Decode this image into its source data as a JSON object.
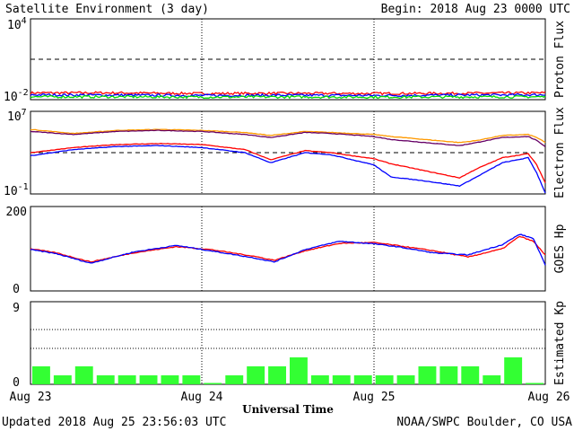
{
  "header": {
    "title": "Satellite Environment (3 day)",
    "begin": "Begin:  2018 Aug 23 0000 UTC"
  },
  "footer": {
    "updated": "Updated 2018 Aug 25 23:56:03 UTC",
    "credit": "NOAA/SWPC Boulder, CO USA"
  },
  "xaxis": {
    "label": "Universal Time",
    "ticks": [
      "Aug 23",
      "Aug 24",
      "Aug 25",
      "Aug 26"
    ]
  },
  "colors": {
    "red": "#ff0000",
    "blue": "#0000ff",
    "green": "#00e000",
    "orange": "#ff9900",
    "purple": "#660066",
    "kp_green": "#33ff33"
  },
  "chart_data": [
    {
      "type": "line",
      "name": "proton-flux",
      "ylabel": "Proton Flux",
      "ytick_labels": {
        "top": "10",
        "top_exp": "4",
        "bottom": "10",
        "bottom_exp": "-2"
      },
      "ylim_log10": [
        -2,
        4
      ],
      "threshold_log10": 1,
      "x_days": [
        0,
        0.5,
        1,
        1.5,
        2,
        2.5,
        3
      ],
      "series": [
        {
          "color": "red",
          "values_log10": [
            -1.55,
            -1.55,
            -1.6,
            -1.58,
            -1.6,
            -1.58,
            -1.55
          ]
        },
        {
          "color": "blue",
          "values_log10": [
            -1.7,
            -1.72,
            -1.75,
            -1.73,
            -1.75,
            -1.72,
            -1.7
          ]
        },
        {
          "color": "green",
          "values_log10": [
            -1.85,
            -1.85,
            -1.87,
            -1.86,
            -1.87,
            -1.86,
            -1.85
          ]
        }
      ]
    },
    {
      "type": "line",
      "name": "electron-flux",
      "ylabel": "Electron Flux",
      "ytick_labels": {
        "top": "10",
        "top_exp": "7",
        "bottom": "10",
        "bottom_exp": "-1"
      },
      "ylim_log10": [
        -1,
        7
      ],
      "threshold_log10": 3,
      "x_days": [
        0,
        0.25,
        0.5,
        0.75,
        1,
        1.25,
        1.4,
        1.6,
        1.75,
        2,
        2.1,
        2.3,
        2.5,
        2.6,
        2.75,
        2.9,
        2.95,
        3
      ],
      "series": [
        {
          "color": "orange",
          "values_log10": [
            5.3,
            4.9,
            5.2,
            5.3,
            5.2,
            5.0,
            4.7,
            5.1,
            5.0,
            4.8,
            4.6,
            4.3,
            4.0,
            4.2,
            4.7,
            4.8,
            4.5,
            4.0
          ]
        },
        {
          "color": "purple",
          "values_log10": [
            5.1,
            4.8,
            5.1,
            5.2,
            5.1,
            4.8,
            4.5,
            5.0,
            4.9,
            4.6,
            4.3,
            4.0,
            3.7,
            4.0,
            4.5,
            4.6,
            4.2,
            3.6
          ]
        },
        {
          "color": "red",
          "values_log10": [
            3.0,
            3.5,
            3.8,
            3.9,
            3.8,
            3.3,
            2.3,
            3.2,
            3.0,
            2.4,
            1.9,
            1.2,
            0.5,
            1.4,
            2.5,
            2.9,
            1.8,
            0.0
          ]
        },
        {
          "color": "blue",
          "values_log10": [
            2.7,
            3.3,
            3.6,
            3.7,
            3.5,
            3.0,
            2.0,
            3.0,
            2.8,
            1.8,
            0.6,
            0.2,
            -0.3,
            0.6,
            2.0,
            2.5,
            1.0,
            -1.0
          ]
        }
      ]
    },
    {
      "type": "line",
      "name": "goes-hp",
      "ylabel": "GOES Hp",
      "ytick_labels": {
        "top": "200",
        "bottom": "0"
      },
      "ylim": [
        0,
        200
      ],
      "x_days": [
        0,
        0.15,
        0.35,
        0.6,
        0.85,
        1.05,
        1.3,
        1.42,
        1.6,
        1.8,
        2.0,
        2.15,
        2.35,
        2.55,
        2.75,
        2.85,
        2.93,
        3
      ],
      "series": [
        {
          "color": "red",
          "values": [
            100,
            90,
            68,
            90,
            105,
            98,
            82,
            72,
            95,
            113,
            115,
            107,
            95,
            80,
            100,
            130,
            118,
            85
          ]
        },
        {
          "color": "blue",
          "values": [
            98,
            88,
            65,
            92,
            108,
            95,
            78,
            68,
            98,
            118,
            112,
            104,
            90,
            85,
            110,
            135,
            125,
            60
          ]
        }
      ]
    },
    {
      "type": "bar",
      "name": "estimated-kp",
      "ylabel": "Estimated Kp",
      "ytick_labels": {
        "top": "9",
        "bottom": "0"
      },
      "ylim": [
        0,
        9
      ],
      "bar_interval_hours": 3,
      "values": [
        2,
        1,
        2,
        1,
        1,
        1,
        1,
        1,
        0,
        1,
        2,
        2,
        3,
        1,
        1,
        1,
        1,
        1,
        2,
        2,
        2,
        1,
        3,
        0
      ]
    }
  ]
}
